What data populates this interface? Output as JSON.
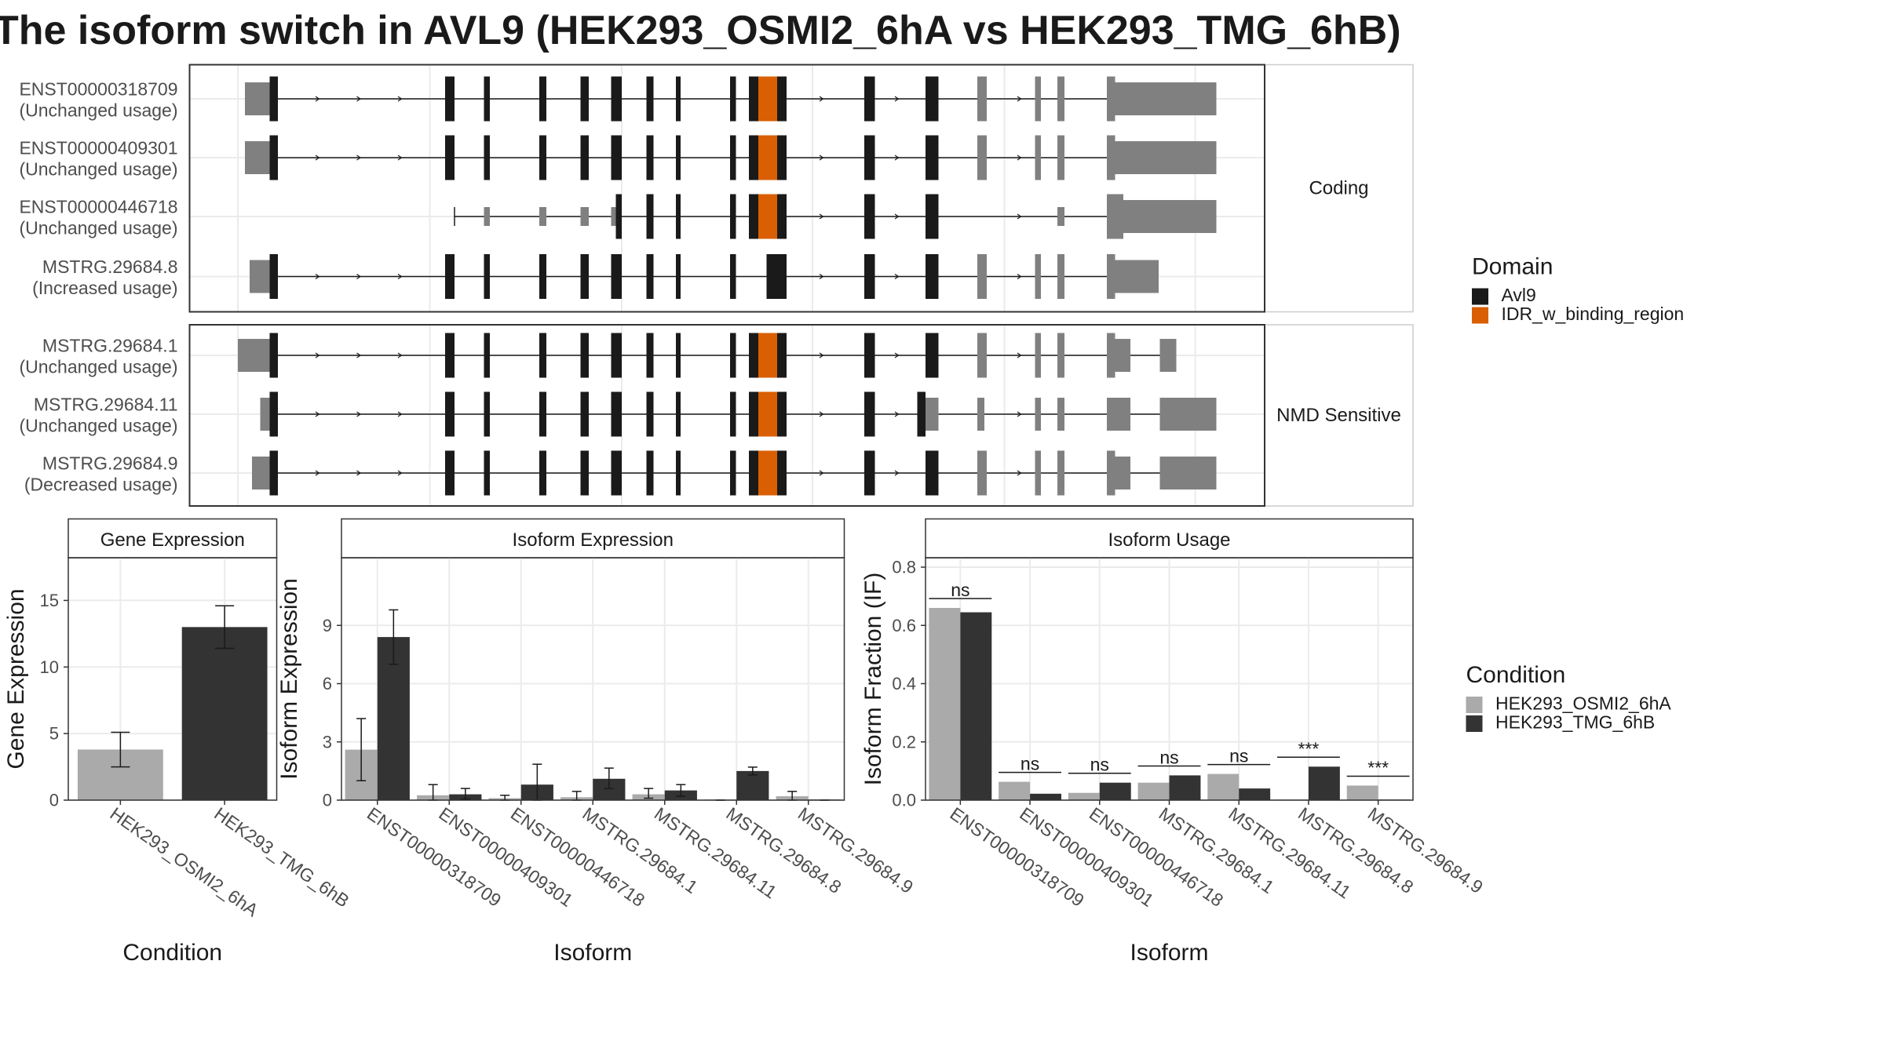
{
  "title": "The isoform switch in AVL9 (HEK293_OSMI2_6hA vs HEK293_TMG_6hB)",
  "colors": {
    "exon_utr": "#808080",
    "avl9": "#1a1a1a",
    "idr": "#d95f02",
    "osmi": "#aaaaaa",
    "tmg": "#333333",
    "panel_border": "#333333",
    "grid": "#ebebeb"
  },
  "structure_panels": [
    {
      "label": "Coding",
      "isoforms": [
        {
          "id": "ENST00000318709",
          "usage": "(Unchanged usage)",
          "type": "full",
          "idr": true
        },
        {
          "id": "ENST00000409301",
          "usage": "(Unchanged usage)",
          "type": "full",
          "idr": true
        },
        {
          "id": "ENST00000446718",
          "usage": "(Unchanged usage)",
          "type": "short",
          "idr": true
        },
        {
          "id": "MSTRG.29684.8",
          "usage": "(Increased usage)",
          "type": "inc",
          "idr": false
        }
      ]
    },
    {
      "label": "NMD Sensitive",
      "isoforms": [
        {
          "id": "MSTRG.29684.1",
          "usage": "(Unchanged usage)",
          "type": "nmd1",
          "idr": true
        },
        {
          "id": "MSTRG.29684.11",
          "usage": "(Unchanged usage)",
          "type": "nmd11",
          "idr": true
        },
        {
          "id": "MSTRG.29684.9",
          "usage": "(Decreased usage)",
          "type": "nmd9",
          "idr": true
        }
      ]
    }
  ],
  "domain_legend": {
    "title": "Domain",
    "items": [
      {
        "label": "Avl9",
        "color": "#1a1a1a"
      },
      {
        "label": "IDR_w_binding_region",
        "color": "#d95f02"
      }
    ]
  },
  "condition_legend": {
    "title": "Condition",
    "items": [
      {
        "label": "HEK293_OSMI2_6hA",
        "color": "#aaaaaa"
      },
      {
        "label": "HEK293_TMG_6hB",
        "color": "#333333"
      }
    ]
  },
  "chart_data": [
    {
      "type": "bar",
      "title": "Gene Expression",
      "xlabel": "Condition",
      "ylabel": "Gene Expression",
      "ylim": [
        0,
        17.5
      ],
      "yticks": [
        0,
        5,
        10,
        15
      ],
      "categories": [
        "HEK293_OSMI2_6hA",
        "HEK293_TMG_6hB"
      ],
      "values": [
        3.8,
        13.0
      ],
      "errors": [
        [
          2.5,
          5.1
        ],
        [
          11.4,
          14.6
        ]
      ],
      "bar_colors": [
        "#aaaaaa",
        "#333333"
      ]
    },
    {
      "type": "bar",
      "title": "Isoform Expression",
      "xlabel": "Isoform",
      "ylabel": "Isoform Expression",
      "ylim": [
        0,
        12
      ],
      "yticks": [
        0,
        3,
        6,
        9
      ],
      "categories": [
        "ENST00000318709",
        "ENST00000409301",
        "ENST00000446718",
        "MSTRG.29684.1",
        "MSTRG.29684.11",
        "MSTRG.29684.8",
        "MSTRG.29684.9"
      ],
      "series": [
        {
          "name": "HEK293_OSMI2_6hA",
          "values": [
            2.6,
            0.25,
            0.1,
            0.15,
            0.3,
            0.0,
            0.2
          ],
          "errors": [
            [
              1.0,
              4.2
            ],
            [
              0.0,
              0.8
            ],
            [
              0.0,
              0.25
            ],
            [
              0.0,
              0.45
            ],
            [
              0.1,
              0.6
            ],
            [
              0.0,
              0.0
            ],
            [
              0.0,
              0.45
            ]
          ]
        },
        {
          "name": "HEK293_TMG_6hB",
          "values": [
            8.4,
            0.3,
            0.8,
            1.1,
            0.5,
            1.5,
            0.0
          ],
          "errors": [
            [
              7.0,
              9.8
            ],
            [
              0.05,
              0.6
            ],
            [
              0.0,
              1.85
            ],
            [
              0.6,
              1.65
            ],
            [
              0.2,
              0.8
            ],
            [
              1.3,
              1.7
            ],
            [
              0.0,
              0.0
            ]
          ]
        }
      ]
    },
    {
      "type": "bar",
      "title": "Isoform Usage",
      "xlabel": "Isoform",
      "ylabel": "Isoform Fraction (IF)",
      "ylim": [
        0,
        0.8
      ],
      "yticks": [
        "0.0",
        "0.2",
        "0.4",
        "0.6",
        "0.8"
      ],
      "categories": [
        "ENST00000318709",
        "ENST00000409301",
        "ENST00000446718",
        "MSTRG.29684.1",
        "MSTRG.29684.11",
        "MSTRG.29684.8",
        "MSTRG.29684.9"
      ],
      "series": [
        {
          "name": "HEK293_OSMI2_6hA",
          "values": [
            0.66,
            0.063,
            0.025,
            0.06,
            0.09,
            0.0,
            0.05
          ]
        },
        {
          "name": "HEK293_TMG_6hB",
          "values": [
            0.645,
            0.022,
            0.06,
            0.085,
            0.04,
            0.115,
            0.0
          ]
        }
      ],
      "significance": [
        "ns",
        "ns",
        "ns",
        "ns",
        "ns",
        "***",
        "***"
      ]
    }
  ]
}
